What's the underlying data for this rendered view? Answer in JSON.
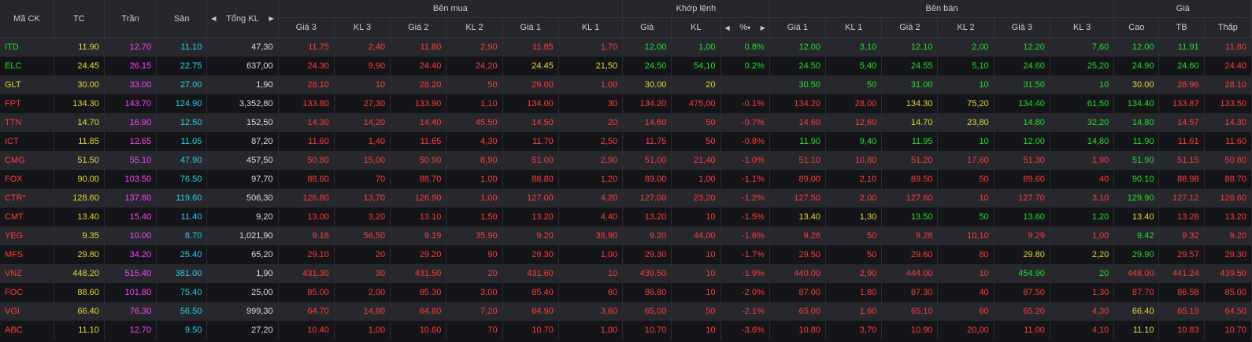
{
  "headers": {
    "symbol": "Mã CK",
    "ref": "TC",
    "ceiling": "Trần",
    "floor": "Sàn",
    "total_vol": "Tổng KL",
    "buy_group": "Bên mua",
    "match_group": "Khớp lệnh",
    "sell_group": "Bên bán",
    "price_group": "Giá",
    "buy_cols": [
      "Giá 3",
      "KL 3",
      "Giá 2",
      "KL 2",
      "Giá 1",
      "KL 1"
    ],
    "match_cols": [
      "Giá",
      "KL",
      "%"
    ],
    "sell_cols": [
      "Giá 1",
      "KL 1",
      "Giá 2",
      "KL 2",
      "Giá 3",
      "KL 3"
    ],
    "price_cols": [
      "Cao",
      "TB",
      "Thấp"
    ]
  },
  "colors": {
    "up": "#1fe02a",
    "down": "#ff3b3b",
    "ref": "#e8d632",
    "ceiling": "#ff42ff",
    "floor": "#29cfe6",
    "neutral": "#dcdcdc"
  },
  "rows": [
    {
      "sym": [
        "ITD",
        "g"
      ],
      "tc": "11.90",
      "tran": "12.70",
      "san": "11.10",
      "tkl": "47,30",
      "b": [
        [
          "11.75",
          "r"
        ],
        [
          "2,40",
          "r"
        ],
        [
          "11.80",
          "r"
        ],
        [
          "2,90",
          "r"
        ],
        [
          "11.85",
          "r"
        ],
        [
          "1,70",
          "r"
        ]
      ],
      "m": [
        [
          "12.00",
          "g"
        ],
        [
          "1,00",
          "g"
        ],
        [
          "0.8%",
          "g"
        ]
      ],
      "s": [
        [
          "12.00",
          "g"
        ],
        [
          "3,10",
          "g"
        ],
        [
          "12.10",
          "g"
        ],
        [
          "2,00",
          "g"
        ],
        [
          "12.20",
          "g"
        ],
        [
          "7,60",
          "g"
        ]
      ],
      "p": [
        [
          "12.00",
          "g"
        ],
        [
          "11.91",
          "g"
        ],
        [
          "11.80",
          "r"
        ]
      ]
    },
    {
      "sym": [
        "ELC",
        "g"
      ],
      "tc": "24.45",
      "tran": "26.15",
      "san": "22.75",
      "tkl": "637,00",
      "b": [
        [
          "24.30",
          "r"
        ],
        [
          "9,90",
          "r"
        ],
        [
          "24.40",
          "r"
        ],
        [
          "24,20",
          "r"
        ],
        [
          "24.45",
          "y"
        ],
        [
          "21,50",
          "y"
        ]
      ],
      "m": [
        [
          "24.50",
          "g"
        ],
        [
          "54,10",
          "g"
        ],
        [
          "0.2%",
          "g"
        ]
      ],
      "s": [
        [
          "24.50",
          "g"
        ],
        [
          "5,40",
          "g"
        ],
        [
          "24.55",
          "g"
        ],
        [
          "5,10",
          "g"
        ],
        [
          "24.60",
          "g"
        ],
        [
          "25,20",
          "g"
        ]
      ],
      "p": [
        [
          "24.90",
          "g"
        ],
        [
          "24.60",
          "g"
        ],
        [
          "24.40",
          "r"
        ]
      ]
    },
    {
      "sym": [
        "GLT",
        "y"
      ],
      "tc": "30.00",
      "tran": "33.00",
      "san": "27.00",
      "tkl": "1,90",
      "b": [
        [
          "28.10",
          "r"
        ],
        [
          "10",
          "r"
        ],
        [
          "28.20",
          "r"
        ],
        [
          "50",
          "r"
        ],
        [
          "29.00",
          "r"
        ],
        [
          "1,00",
          "r"
        ]
      ],
      "m": [
        [
          "30.00",
          "y"
        ],
        [
          "20",
          "y"
        ],
        [
          "",
          ""
        ]
      ],
      "s": [
        [
          "30.50",
          "g"
        ],
        [
          "50",
          "g"
        ],
        [
          "31.00",
          "g"
        ],
        [
          "10",
          "g"
        ],
        [
          "31.50",
          "g"
        ],
        [
          "10",
          "g"
        ]
      ],
      "p": [
        [
          "30.00",
          "y"
        ],
        [
          "28.96",
          "r"
        ],
        [
          "28.10",
          "r"
        ]
      ]
    },
    {
      "sym": [
        "FPT",
        "r"
      ],
      "tc": "134.30",
      "tran": "143.70",
      "san": "124.90",
      "tkl": "3,352,80",
      "b": [
        [
          "133.80",
          "r"
        ],
        [
          "27,30",
          "r"
        ],
        [
          "133.90",
          "r"
        ],
        [
          "1,10",
          "r"
        ],
        [
          "134.00",
          "r"
        ],
        [
          "30",
          "r"
        ]
      ],
      "m": [
        [
          "134.20",
          "r"
        ],
        [
          "475,00",
          "r"
        ],
        [
          "-0.1%",
          "r"
        ]
      ],
      "s": [
        [
          "134.20",
          "r"
        ],
        [
          "28,00",
          "r"
        ],
        [
          "134.30",
          "y"
        ],
        [
          "75,20",
          "y"
        ],
        [
          "134.40",
          "g"
        ],
        [
          "61,50",
          "g"
        ]
      ],
      "p": [
        [
          "134.40",
          "g"
        ],
        [
          "133.87",
          "r"
        ],
        [
          "133.50",
          "r"
        ]
      ]
    },
    {
      "sym": [
        "TTN",
        "r"
      ],
      "tc": "14.70",
      "tran": "16.90",
      "san": "12.50",
      "tkl": "152,50",
      "b": [
        [
          "14.30",
          "r"
        ],
        [
          "14,20",
          "r"
        ],
        [
          "14.40",
          "r"
        ],
        [
          "45,50",
          "r"
        ],
        [
          "14.50",
          "r"
        ],
        [
          "20",
          "r"
        ]
      ],
      "m": [
        [
          "14.60",
          "r"
        ],
        [
          "50",
          "r"
        ],
        [
          "-0.7%",
          "r"
        ]
      ],
      "s": [
        [
          "14.60",
          "r"
        ],
        [
          "12,60",
          "r"
        ],
        [
          "14.70",
          "y"
        ],
        [
          "23,80",
          "y"
        ],
        [
          "14.80",
          "g"
        ],
        [
          "32,20",
          "g"
        ]
      ],
      "p": [
        [
          "14.80",
          "g"
        ],
        [
          "14.57",
          "r"
        ],
        [
          "14.30",
          "r"
        ]
      ]
    },
    {
      "sym": [
        "ICT",
        "r"
      ],
      "tc": "11.85",
      "tran": "12.65",
      "san": "11.05",
      "tkl": "87,20",
      "b": [
        [
          "11.60",
          "r"
        ],
        [
          "1,40",
          "r"
        ],
        [
          "11.65",
          "r"
        ],
        [
          "4,30",
          "r"
        ],
        [
          "11.70",
          "r"
        ],
        [
          "2,50",
          "r"
        ]
      ],
      "m": [
        [
          "11.75",
          "r"
        ],
        [
          "50",
          "r"
        ],
        [
          "-0.8%",
          "r"
        ]
      ],
      "s": [
        [
          "11.90",
          "g"
        ],
        [
          "9,40",
          "g"
        ],
        [
          "11.95",
          "g"
        ],
        [
          "10",
          "g"
        ],
        [
          "12.00",
          "g"
        ],
        [
          "14,80",
          "g"
        ]
      ],
      "p": [
        [
          "11.90",
          "g"
        ],
        [
          "11.61",
          "r"
        ],
        [
          "11.60",
          "r"
        ]
      ]
    },
    {
      "sym": [
        "CMG",
        "r"
      ],
      "tc": "51.50",
      "tran": "55.10",
      "san": "47.90",
      "tkl": "457,50",
      "b": [
        [
          "50.80",
          "r"
        ],
        [
          "15,00",
          "r"
        ],
        [
          "50.90",
          "r"
        ],
        [
          "8,90",
          "r"
        ],
        [
          "51.00",
          "r"
        ],
        [
          "2,90",
          "r"
        ]
      ],
      "m": [
        [
          "51.00",
          "r"
        ],
        [
          "21,40",
          "r"
        ],
        [
          "-1.0%",
          "r"
        ]
      ],
      "s": [
        [
          "51.10",
          "r"
        ],
        [
          "10,80",
          "r"
        ],
        [
          "51.20",
          "r"
        ],
        [
          "17,60",
          "r"
        ],
        [
          "51.30",
          "r"
        ],
        [
          "1,90",
          "r"
        ]
      ],
      "p": [
        [
          "51.90",
          "g"
        ],
        [
          "51.15",
          "r"
        ],
        [
          "50.80",
          "r"
        ]
      ]
    },
    {
      "sym": [
        "FOX",
        "r"
      ],
      "tc": "90.00",
      "tran": "103.50",
      "san": "76.50",
      "tkl": "97,70",
      "b": [
        [
          "88.60",
          "r"
        ],
        [
          "70",
          "r"
        ],
        [
          "88.70",
          "r"
        ],
        [
          "1,00",
          "r"
        ],
        [
          "88.80",
          "r"
        ],
        [
          "1,20",
          "r"
        ]
      ],
      "m": [
        [
          "89.00",
          "r"
        ],
        [
          "1,00",
          "r"
        ],
        [
          "-1.1%",
          "r"
        ]
      ],
      "s": [
        [
          "89.00",
          "r"
        ],
        [
          "2,10",
          "r"
        ],
        [
          "89.50",
          "r"
        ],
        [
          "50",
          "r"
        ],
        [
          "89.60",
          "r"
        ],
        [
          "40",
          "r"
        ]
      ],
      "p": [
        [
          "90.10",
          "g"
        ],
        [
          "88.98",
          "r"
        ],
        [
          "88.70",
          "r"
        ]
      ]
    },
    {
      "sym": [
        "CTR*",
        "r"
      ],
      "tc": "128.60",
      "tran": "137.60",
      "san": "119.60",
      "tkl": "506,30",
      "b": [
        [
          "126.80",
          "r"
        ],
        [
          "13,70",
          "r"
        ],
        [
          "126.90",
          "r"
        ],
        [
          "1,00",
          "r"
        ],
        [
          "127.00",
          "r"
        ],
        [
          "4,20",
          "r"
        ]
      ],
      "m": [
        [
          "127.00",
          "r"
        ],
        [
          "23,20",
          "r"
        ],
        [
          "-1.2%",
          "r"
        ]
      ],
      "s": [
        [
          "127.50",
          "r"
        ],
        [
          "2,00",
          "r"
        ],
        [
          "127.60",
          "r"
        ],
        [
          "10",
          "r"
        ],
        [
          "127.70",
          "r"
        ],
        [
          "3,10",
          "r"
        ]
      ],
      "p": [
        [
          "129.90",
          "g"
        ],
        [
          "127.12",
          "r"
        ],
        [
          "126.60",
          "r"
        ]
      ]
    },
    {
      "sym": [
        "CMT",
        "r"
      ],
      "tc": "13.40",
      "tran": "15.40",
      "san": "11.40",
      "tkl": "9,20",
      "b": [
        [
          "13.00",
          "r"
        ],
        [
          "3,20",
          "r"
        ],
        [
          "13.10",
          "r"
        ],
        [
          "1,50",
          "r"
        ],
        [
          "13.20",
          "r"
        ],
        [
          "4,40",
          "r"
        ]
      ],
      "m": [
        [
          "13.20",
          "r"
        ],
        [
          "10",
          "r"
        ],
        [
          "-1.5%",
          "r"
        ]
      ],
      "s": [
        [
          "13.40",
          "y"
        ],
        [
          "1,30",
          "y"
        ],
        [
          "13.50",
          "g"
        ],
        [
          "50",
          "g"
        ],
        [
          "13.60",
          "g"
        ],
        [
          "1,20",
          "g"
        ]
      ],
      "p": [
        [
          "13.40",
          "y"
        ],
        [
          "13.28",
          "r"
        ],
        [
          "13.20",
          "r"
        ]
      ]
    },
    {
      "sym": [
        "YEG",
        "r"
      ],
      "tc": "9.35",
      "tran": "10.00",
      "san": "8.70",
      "tkl": "1,021,90",
      "b": [
        [
          "9.18",
          "r"
        ],
        [
          "56,50",
          "r"
        ],
        [
          "9.19",
          "r"
        ],
        [
          "35,90",
          "r"
        ],
        [
          "9.20",
          "r"
        ],
        [
          "38,90",
          "r"
        ]
      ],
      "m": [
        [
          "9.20",
          "r"
        ],
        [
          "44,00",
          "r"
        ],
        [
          "-1.6%",
          "r"
        ]
      ],
      "s": [
        [
          "9.26",
          "r"
        ],
        [
          "50",
          "r"
        ],
        [
          "9.28",
          "r"
        ],
        [
          "10,10",
          "r"
        ],
        [
          "9.29",
          "r"
        ],
        [
          "1,00",
          "r"
        ]
      ],
      "p": [
        [
          "9.42",
          "g"
        ],
        [
          "9.32",
          "r"
        ],
        [
          "9.20",
          "r"
        ]
      ]
    },
    {
      "sym": [
        "MFS",
        "r"
      ],
      "tc": "29.80",
      "tran": "34.20",
      "san": "25.40",
      "tkl": "65,20",
      "b": [
        [
          "29.10",
          "r"
        ],
        [
          "20",
          "r"
        ],
        [
          "29.20",
          "r"
        ],
        [
          "90",
          "r"
        ],
        [
          "29.30",
          "r"
        ],
        [
          "1,00",
          "r"
        ]
      ],
      "m": [
        [
          "29.30",
          "r"
        ],
        [
          "10",
          "r"
        ],
        [
          "-1.7%",
          "r"
        ]
      ],
      "s": [
        [
          "29.50",
          "r"
        ],
        [
          "50",
          "r"
        ],
        [
          "29.60",
          "r"
        ],
        [
          "80",
          "r"
        ],
        [
          "29.80",
          "y"
        ],
        [
          "2,20",
          "y"
        ]
      ],
      "p": [
        [
          "29.90",
          "g"
        ],
        [
          "29.57",
          "r"
        ],
        [
          "29.30",
          "r"
        ]
      ]
    },
    {
      "sym": [
        "VNZ",
        "r"
      ],
      "tc": "448.20",
      "tran": "515.40",
      "san": "381.00",
      "tkl": "1,90",
      "b": [
        [
          "431.30",
          "r"
        ],
        [
          "30",
          "r"
        ],
        [
          "431.50",
          "r"
        ],
        [
          "20",
          "r"
        ],
        [
          "431.60",
          "r"
        ],
        [
          "10",
          "r"
        ]
      ],
      "m": [
        [
          "439.50",
          "r"
        ],
        [
          "10",
          "r"
        ],
        [
          "-1.9%",
          "r"
        ]
      ],
      "s": [
        [
          "440.00",
          "r"
        ],
        [
          "2,90",
          "r"
        ],
        [
          "444.00",
          "r"
        ],
        [
          "10",
          "r"
        ],
        [
          "454.90",
          "g"
        ],
        [
          "20",
          "g"
        ]
      ],
      "p": [
        [
          "448.00",
          "r"
        ],
        [
          "441.24",
          "r"
        ],
        [
          "439.50",
          "r"
        ]
      ]
    },
    {
      "sym": [
        "FOC",
        "r"
      ],
      "tc": "88.60",
      "tran": "101.80",
      "san": "75.40",
      "tkl": "25,00",
      "b": [
        [
          "85.00",
          "r"
        ],
        [
          "2,00",
          "r"
        ],
        [
          "85.30",
          "r"
        ],
        [
          "3,00",
          "r"
        ],
        [
          "85.40",
          "r"
        ],
        [
          "60",
          "r"
        ]
      ],
      "m": [
        [
          "86.80",
          "r"
        ],
        [
          "10",
          "r"
        ],
        [
          "-2.0%",
          "r"
        ]
      ],
      "s": [
        [
          "87.00",
          "r"
        ],
        [
          "1,80",
          "r"
        ],
        [
          "87.30",
          "r"
        ],
        [
          "40",
          "r"
        ],
        [
          "87.50",
          "r"
        ],
        [
          "1,30",
          "r"
        ]
      ],
      "p": [
        [
          "87.70",
          "r"
        ],
        [
          "86.58",
          "r"
        ],
        [
          "85.00",
          "r"
        ]
      ]
    },
    {
      "sym": [
        "VGI",
        "r"
      ],
      "tc": "66.40",
      "tran": "76.30",
      "san": "56.50",
      "tkl": "999,30",
      "b": [
        [
          "64.70",
          "r"
        ],
        [
          "14,80",
          "r"
        ],
        [
          "64.80",
          "r"
        ],
        [
          "7,20",
          "r"
        ],
        [
          "64.90",
          "r"
        ],
        [
          "3,60",
          "r"
        ]
      ],
      "m": [
        [
          "65.00",
          "r"
        ],
        [
          "50",
          "r"
        ],
        [
          "-2.1%",
          "r"
        ]
      ],
      "s": [
        [
          "65.00",
          "r"
        ],
        [
          "1,60",
          "r"
        ],
        [
          "65.10",
          "r"
        ],
        [
          "60",
          "r"
        ],
        [
          "65.20",
          "r"
        ],
        [
          "4,30",
          "r"
        ]
      ],
      "p": [
        [
          "66.40",
          "y"
        ],
        [
          "65.19",
          "r"
        ],
        [
          "64.50",
          "r"
        ]
      ]
    },
    {
      "sym": [
        "ABC",
        "r"
      ],
      "tc": "11.10",
      "tran": "12.70",
      "san": "9.50",
      "tkl": "27,20",
      "b": [
        [
          "10.40",
          "r"
        ],
        [
          "1,00",
          "r"
        ],
        [
          "10.60",
          "r"
        ],
        [
          "70",
          "r"
        ],
        [
          "10.70",
          "r"
        ],
        [
          "1,00",
          "r"
        ]
      ],
      "m": [
        [
          "10.70",
          "r"
        ],
        [
          "10",
          "r"
        ],
        [
          "-3.6%",
          "r"
        ]
      ],
      "s": [
        [
          "10.80",
          "r"
        ],
        [
          "3,70",
          "r"
        ],
        [
          "10.90",
          "r"
        ],
        [
          "20,00",
          "r"
        ],
        [
          "11.00",
          "r"
        ],
        [
          "4,10",
          "r"
        ]
      ],
      "p": [
        [
          "11.10",
          "y"
        ],
        [
          "10.83",
          "r"
        ],
        [
          "10.70",
          "r"
        ]
      ]
    }
  ]
}
